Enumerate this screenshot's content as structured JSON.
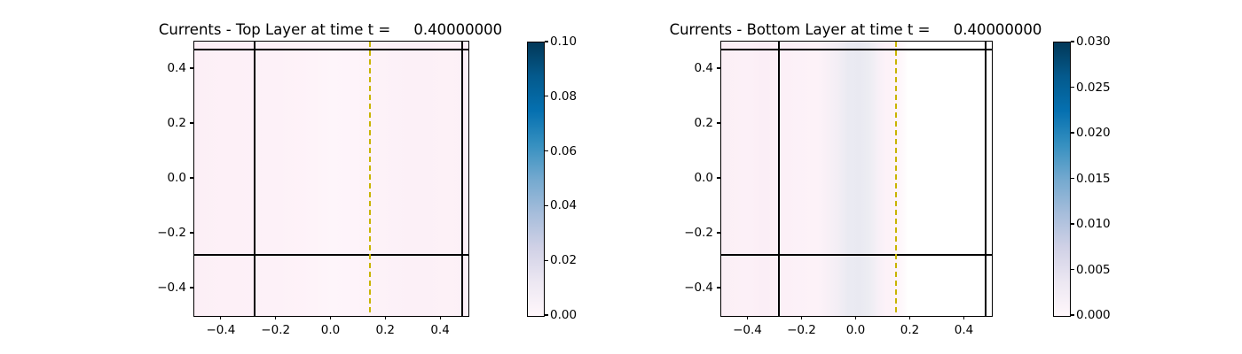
{
  "figure": {
    "background": "#ffffff",
    "panels": [
      {
        "id": "top-layer",
        "title": "Currents - Top Layer at time t =     0.40000000",
        "x_tick_labels": [
          "−0.4",
          "−0.2",
          "0.0",
          "0.2",
          "0.4"
        ],
        "y_tick_labels": [
          "0.4",
          "0.2",
          "0.0",
          "−0.2",
          "−0.4"
        ],
        "colorbar_tick_labels": [
          "0.10",
          "0.08",
          "0.06",
          "0.04",
          "0.02",
          "0.00"
        ]
      },
      {
        "id": "bottom-layer",
        "title": "Currents - Bottom Layer at time t =     0.40000000",
        "x_tick_labels": [
          "−0.4",
          "−0.2",
          "0.0",
          "0.2",
          "0.4"
        ],
        "y_tick_labels": [
          "0.4",
          "0.2",
          "0.0",
          "−0.2",
          "−0.4"
        ],
        "colorbar_tick_labels": [
          "0.030",
          "0.025",
          "0.020",
          "0.015",
          "0.010",
          "0.005",
          "0.000"
        ]
      }
    ]
  },
  "colors": {
    "wall_line": "#000000",
    "dashed_gauge_line": "#c8b400",
    "colormap_low": "#fff7fb",
    "colormap_high": "#023858",
    "field_pink": "#fdf1f8",
    "field_lavender_band": "#e9e9f1",
    "masked_region": "#ffffff"
  },
  "chart_data": [
    {
      "type": "heatmap",
      "title": "Currents - Top Layer at time t =     0.40000000",
      "time": 0.4,
      "xlim": [
        -0.5,
        0.5
      ],
      "ylim": [
        -0.5,
        0.5
      ],
      "x_ticks": [
        -0.4,
        -0.2,
        0.0,
        0.2,
        0.4
      ],
      "y_ticks": [
        0.4,
        0.2,
        0.0,
        -0.2,
        -0.4
      ],
      "colormap": "PuBu (white-pink #fff7fb at 0 to dark blue #023858 at max)",
      "colorbar": {
        "vmin": 0.0,
        "vmax": 0.1,
        "tick_values": [
          0.1,
          0.08,
          0.06,
          0.04,
          0.02,
          0.0
        ],
        "position": "right"
      },
      "field_summary": "Current magnitude nearly uniform and close to zero (~0.002-0.005 of vmax 0.10, very light pink) over entire domain; barely lighter vertical band near x=0; subtle vertical striping only.",
      "overlays": {
        "solid_black_vlines_x": [
          -0.28,
          0.48
        ],
        "solid_black_hlines_y": [
          0.47,
          -0.28
        ],
        "gold_dashed_vline_x": 0.15
      },
      "grid": false,
      "legend": false
    },
    {
      "type": "heatmap",
      "title": "Currents - Bottom Layer at time t =     0.40000000",
      "time": 0.4,
      "xlim": [
        -0.5,
        0.5
      ],
      "ylim": [
        -0.5,
        0.5
      ],
      "x_ticks": [
        -0.4,
        -0.2,
        0.0,
        0.2,
        0.4
      ],
      "y_ticks": [
        0.4,
        0.2,
        0.0,
        -0.2,
        -0.4
      ],
      "colormap": "PuBu (white-pink #fff7fb at 0 to dark blue #023858 at max)",
      "colorbar": {
        "vmin": 0.0,
        "vmax": 0.03,
        "tick_values": [
          0.03,
          0.025,
          0.02,
          0.015,
          0.01,
          0.005,
          0.0
        ],
        "position": "right"
      },
      "field_summary": "Light pink (~0.001-0.002 of vmax 0.030) from x=-0.5 to x~0.17 at all y; faint lavender-blue vertical band (~0.004-0.006) between x~-0.05 and x~0.07; region right of x~0.17 is blank white (masked / no bottom layer).",
      "overlays": {
        "solid_black_vlines_x": [
          -0.28,
          0.48
        ],
        "solid_black_hlines_y": [
          0.47,
          -0.28
        ],
        "gold_dashed_vline_x": 0.15
      },
      "grid": false,
      "legend": false
    }
  ]
}
